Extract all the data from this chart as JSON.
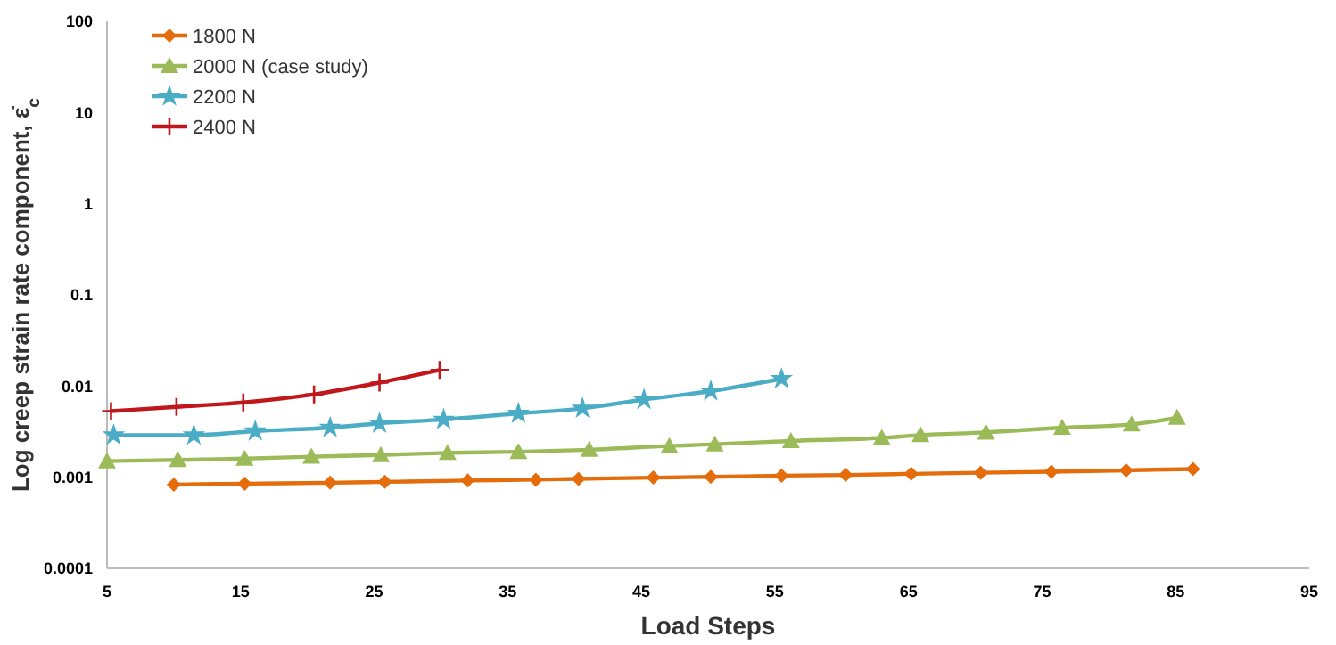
{
  "chart_data": {
    "type": "line",
    "xlabel": "Load Steps",
    "ylabel": "Log creep strain rate component, ε̇$_{c}$",
    "log": "y",
    "xlim": [
      5,
      95
    ],
    "xticks": [
      5,
      15,
      25,
      35,
      45,
      55,
      65,
      75,
      85,
      95
    ],
    "ylim": [
      0.0001,
      100
    ],
    "yticks": [
      0.0001,
      0.001,
      0.01,
      0.1,
      1,
      10,
      100
    ],
    "grid": false,
    "legend": "top left",
    "line_style": "solid",
    "series": [
      {
        "name": "1800 N",
        "color": "#e46c0a",
        "marker": "diamond",
        "x": [
          10,
          15.3,
          21.7,
          25.8,
          32,
          37.1,
          40.3,
          45.9,
          50.2,
          55.5,
          60.3,
          65.2,
          70.4,
          75.7,
          81.3,
          86.3
        ],
        "values": [
          0.00083,
          0.00085,
          0.00087,
          0.00089,
          0.00092,
          0.00094,
          0.00096,
          0.00099,
          0.00101,
          0.00104,
          0.00106,
          0.00109,
          0.00112,
          0.00115,
          0.00119,
          0.00123
        ]
      },
      {
        "name": "2000 N (case study)",
        "color": "#9bbb59",
        "marker": "triangle",
        "x": [
          5,
          10.3,
          15.3,
          20.3,
          25.5,
          30.5,
          35.8,
          41.1,
          47.1,
          50.5,
          56.2,
          63,
          65.9,
          70.8,
          76.5,
          81.7,
          85.1
        ],
        "values": [
          0.0015,
          0.00155,
          0.0016,
          0.00168,
          0.00175,
          0.00185,
          0.0019,
          0.002,
          0.0022,
          0.0023,
          0.0025,
          0.0027,
          0.0029,
          0.0031,
          0.0035,
          0.0038,
          0.0045
        ]
      },
      {
        "name": "2200 N",
        "color": "#4bacc6",
        "marker": "star",
        "x": [
          5.5,
          11.5,
          16.1,
          21.7,
          25.4,
          30.2,
          35.8,
          40.6,
          45.2,
          50.2,
          55.5
        ],
        "values": [
          0.0029,
          0.0029,
          0.0032,
          0.0035,
          0.0039,
          0.0043,
          0.005,
          0.0057,
          0.0071,
          0.0088,
          0.012
        ]
      },
      {
        "name": "2400 N",
        "color": "#c0171c",
        "marker": "cross",
        "x": [
          5.3,
          10.2,
          15.2,
          20.5,
          25.4,
          29.9
        ],
        "values": [
          0.0053,
          0.0059,
          0.0066,
          0.0081,
          0.0109,
          0.015
        ]
      }
    ]
  }
}
